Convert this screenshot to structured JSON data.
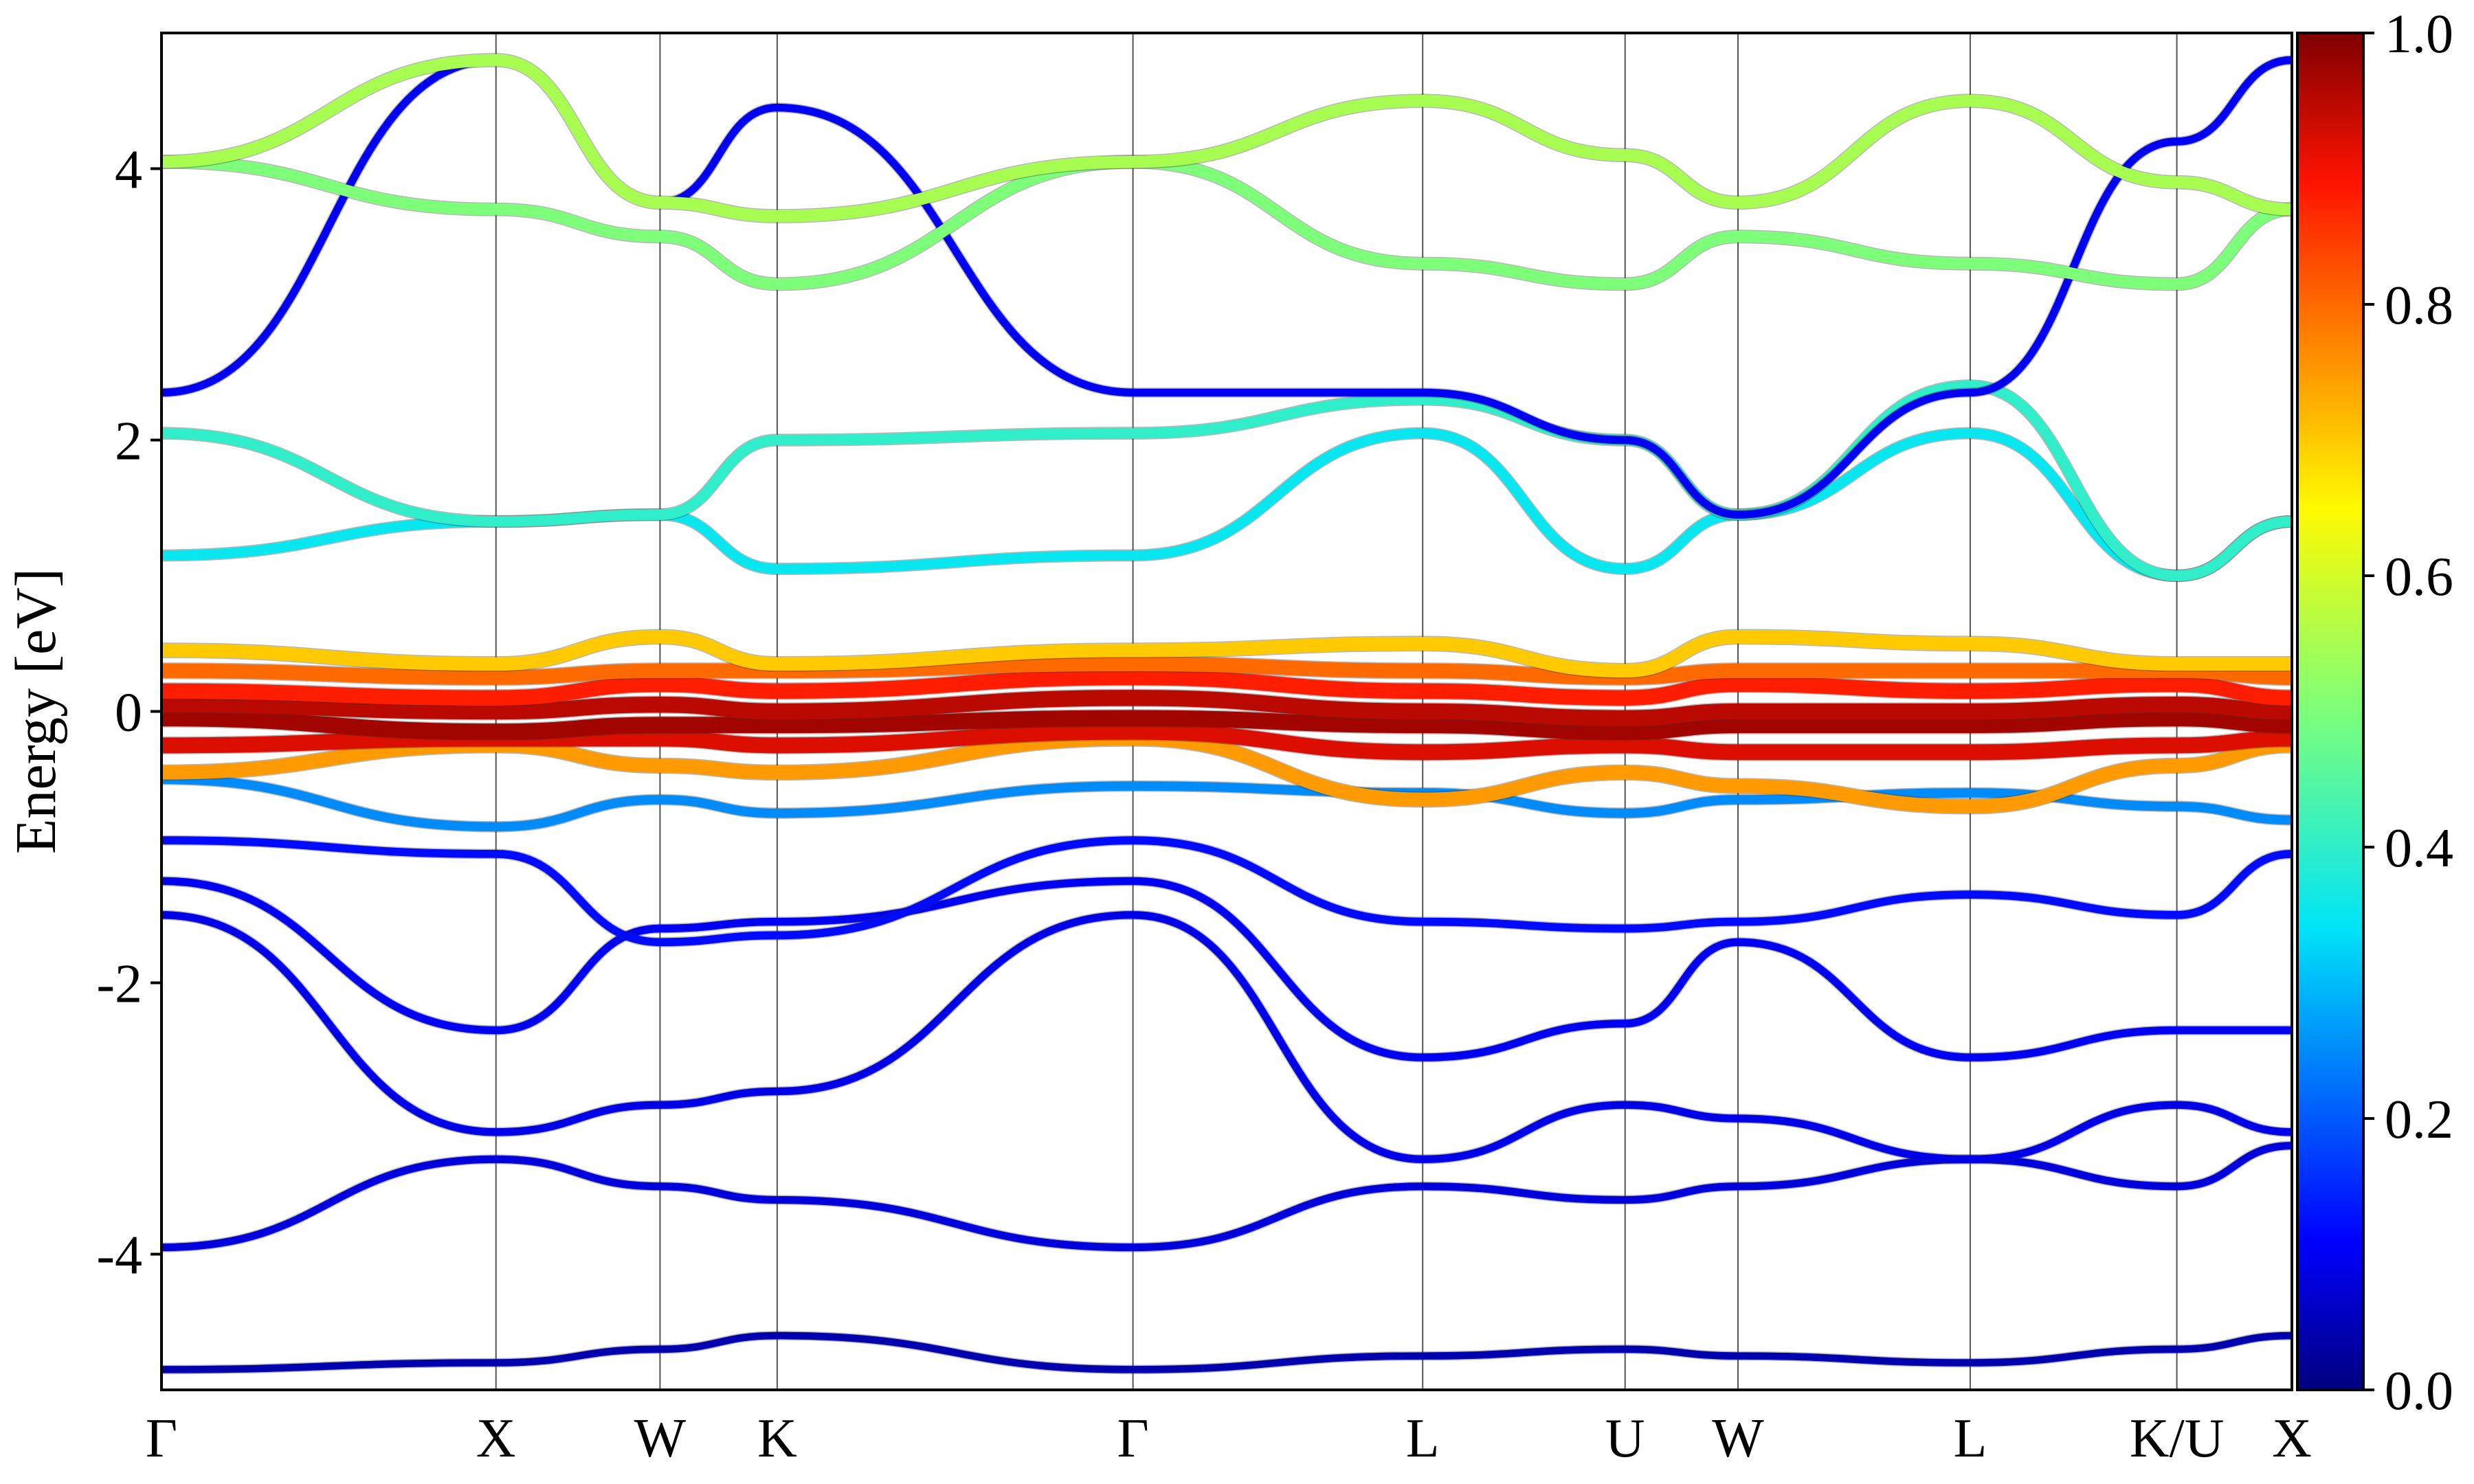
{
  "chart_data": {
    "type": "line",
    "title": "",
    "xlabel": "",
    "ylabel": "Energy [eV]",
    "ylim": [
      -5,
      5
    ],
    "y_ticks": [
      -4,
      -2,
      0,
      2,
      4
    ],
    "y_tick_labels": [
      "-4",
      "-2",
      "0",
      "2",
      "4"
    ],
    "x_range": [
      0,
      1
    ],
    "k_points": [
      {
        "label": "Γ",
        "x": 0.0
      },
      {
        "label": "X",
        "x": 0.157
      },
      {
        "label": "W",
        "x": 0.234
      },
      {
        "label": "K",
        "x": 0.289
      },
      {
        "label": "Γ",
        "x": 0.456
      },
      {
        "label": "L",
        "x": 0.592
      },
      {
        "label": "U",
        "x": 0.687
      },
      {
        "label": "W",
        "x": 0.74
      },
      {
        "label": "L",
        "x": 0.849
      },
      {
        "label": "K/U",
        "x": 0.946
      },
      {
        "label": "X",
        "x": 1.0
      }
    ],
    "colorbar": {
      "colormap": "jet",
      "range": [
        0.0,
        1.0
      ],
      "ticks": [
        "0.0",
        "0.2",
        "0.4",
        "0.6",
        "0.8",
        "1.0"
      ]
    },
    "series": [
      {
        "weight": 0.04,
        "x": [
          0,
          0.157,
          0.234,
          0.289,
          0.456,
          0.592,
          0.687,
          0.74,
          0.849,
          0.946,
          1.0
        ],
        "y": [
          -4.85,
          -4.8,
          -4.7,
          -4.6,
          -4.85,
          -4.75,
          -4.7,
          -4.75,
          -4.8,
          -4.7,
          -4.6
        ]
      },
      {
        "weight": 0.08,
        "x": [
          0,
          0.157,
          0.234,
          0.289,
          0.456,
          0.592,
          0.687,
          0.74,
          0.849,
          0.946,
          1.0
        ],
        "y": [
          -3.95,
          -3.3,
          -3.5,
          -3.6,
          -3.95,
          -3.5,
          -3.6,
          -3.5,
          -3.3,
          -3.5,
          -3.2
        ]
      },
      {
        "weight": 0.09,
        "x": [
          0,
          0.157,
          0.234,
          0.289,
          0.456,
          0.592,
          0.687,
          0.74,
          0.849,
          0.946,
          1.0
        ],
        "y": [
          -1.5,
          -3.1,
          -2.9,
          -2.8,
          -1.5,
          -3.3,
          -2.9,
          -3.0,
          -3.3,
          -2.9,
          -3.1
        ]
      },
      {
        "weight": 0.1,
        "x": [
          0,
          0.157,
          0.234,
          0.289,
          0.456,
          0.592,
          0.687,
          0.74,
          0.849,
          0.946,
          1.0
        ],
        "y": [
          -1.25,
          -2.35,
          -1.6,
          -1.55,
          -1.25,
          -2.55,
          -2.3,
          -1.7,
          -2.55,
          -2.35,
          -2.35
        ]
      },
      {
        "weight": 0.12,
        "x": [
          0,
          0.157,
          0.234,
          0.289,
          0.456,
          0.592,
          0.687,
          0.74,
          0.849,
          0.946,
          1.0
        ],
        "y": [
          -0.95,
          -1.05,
          -1.7,
          -1.65,
          -0.95,
          -1.55,
          -1.6,
          -1.55,
          -1.35,
          -1.5,
          -1.05
        ]
      },
      {
        "weight": 0.25,
        "x": [
          0,
          0.157,
          0.234,
          0.289,
          0.456,
          0.592,
          0.687,
          0.74,
          0.849,
          0.946,
          1.0
        ],
        "y": [
          -0.5,
          -0.85,
          -0.65,
          -0.75,
          -0.55,
          -0.6,
          -0.75,
          -0.65,
          -0.6,
          -0.7,
          -0.8
        ]
      },
      {
        "weight": 0.75,
        "x": [
          0,
          0.157,
          0.234,
          0.289,
          0.456,
          0.592,
          0.687,
          0.74,
          0.849,
          0.946,
          1.0
        ],
        "y": [
          -0.45,
          -0.25,
          -0.4,
          -0.45,
          -0.2,
          -0.65,
          -0.45,
          -0.55,
          -0.7,
          -0.4,
          -0.25
        ]
      },
      {
        "weight": 0.92,
        "x": [
          0,
          0.157,
          0.234,
          0.289,
          0.456,
          0.592,
          0.687,
          0.74,
          0.849,
          0.946,
          1.0
        ],
        "y": [
          -0.25,
          -0.2,
          -0.2,
          -0.25,
          -0.15,
          -0.3,
          -0.25,
          -0.3,
          -0.3,
          -0.25,
          -0.2
        ]
      },
      {
        "weight": 0.97,
        "x": [
          0,
          0.157,
          0.234,
          0.289,
          0.456,
          0.592,
          0.687,
          0.74,
          0.849,
          0.946,
          1.0
        ],
        "y": [
          -0.05,
          -0.15,
          -0.1,
          -0.1,
          -0.05,
          -0.1,
          -0.15,
          -0.1,
          -0.1,
          -0.05,
          -0.1
        ]
      },
      {
        "weight": 0.95,
        "x": [
          0,
          0.157,
          0.234,
          0.289,
          0.456,
          0.592,
          0.687,
          0.74,
          0.849,
          0.946,
          1.0
        ],
        "y": [
          0.05,
          0.0,
          0.05,
          0.0,
          0.1,
          0.0,
          -0.05,
          0.0,
          0.0,
          0.05,
          0.0
        ]
      },
      {
        "weight": 0.88,
        "x": [
          0,
          0.157,
          0.234,
          0.289,
          0.456,
          0.592,
          0.687,
          0.74,
          0.849,
          0.946,
          1.0
        ],
        "y": [
          0.15,
          0.1,
          0.2,
          0.15,
          0.25,
          0.15,
          0.1,
          0.2,
          0.15,
          0.2,
          0.1
        ]
      },
      {
        "weight": 0.8,
        "x": [
          0,
          0.157,
          0.234,
          0.289,
          0.456,
          0.592,
          0.687,
          0.74,
          0.849,
          0.946,
          1.0
        ],
        "y": [
          0.3,
          0.25,
          0.3,
          0.3,
          0.35,
          0.3,
          0.25,
          0.3,
          0.3,
          0.3,
          0.25
        ]
      },
      {
        "weight": 0.7,
        "x": [
          0,
          0.157,
          0.234,
          0.289,
          0.456,
          0.592,
          0.687,
          0.74,
          0.849,
          0.946,
          1.0
        ],
        "y": [
          0.45,
          0.35,
          0.55,
          0.35,
          0.45,
          0.5,
          0.3,
          0.55,
          0.5,
          0.35,
          0.35
        ]
      },
      {
        "weight": 0.35,
        "x": [
          0,
          0.157,
          0.234,
          0.289,
          0.456,
          0.592,
          0.687,
          0.74,
          0.849,
          0.946,
          1.0
        ],
        "y": [
          1.15,
          1.4,
          1.45,
          1.05,
          1.15,
          2.05,
          1.05,
          1.45,
          2.05,
          1.0,
          1.4
        ]
      },
      {
        "weight": 0.4,
        "x": [
          0,
          0.157,
          0.234,
          0.289,
          0.456,
          0.592,
          0.687,
          0.74,
          0.849,
          0.946,
          1.0
        ],
        "y": [
          2.05,
          1.4,
          1.45,
          2.0,
          2.05,
          2.3,
          2.0,
          1.45,
          2.4,
          1.0,
          1.4
        ]
      },
      {
        "weight": 0.1,
        "x": [
          0,
          0.157,
          0.234,
          0.289,
          0.456,
          0.592,
          0.687,
          0.74,
          0.849,
          0.946,
          1.0
        ],
        "y": [
          2.35,
          4.8,
          3.75,
          4.45,
          2.35,
          2.35,
          2.0,
          1.45,
          2.35,
          4.2,
          4.8
        ]
      },
      {
        "weight": 0.5,
        "x": [
          0,
          0.157,
          0.234,
          0.289,
          0.456,
          0.592,
          0.687,
          0.74,
          0.849,
          0.946,
          1.0
        ],
        "y": [
          4.05,
          3.7,
          3.5,
          3.15,
          4.05,
          3.3,
          3.15,
          3.5,
          3.3,
          3.15,
          3.7
        ]
      },
      {
        "weight": 0.55,
        "x": [
          0,
          0.157,
          0.234,
          0.289,
          0.456,
          0.592,
          0.687,
          0.74,
          0.849,
          0.946,
          1.0
        ],
        "y": [
          4.05,
          4.8,
          3.75,
          3.65,
          4.05,
          4.5,
          4.1,
          3.75,
          4.5,
          3.9,
          3.7
        ]
      }
    ]
  }
}
